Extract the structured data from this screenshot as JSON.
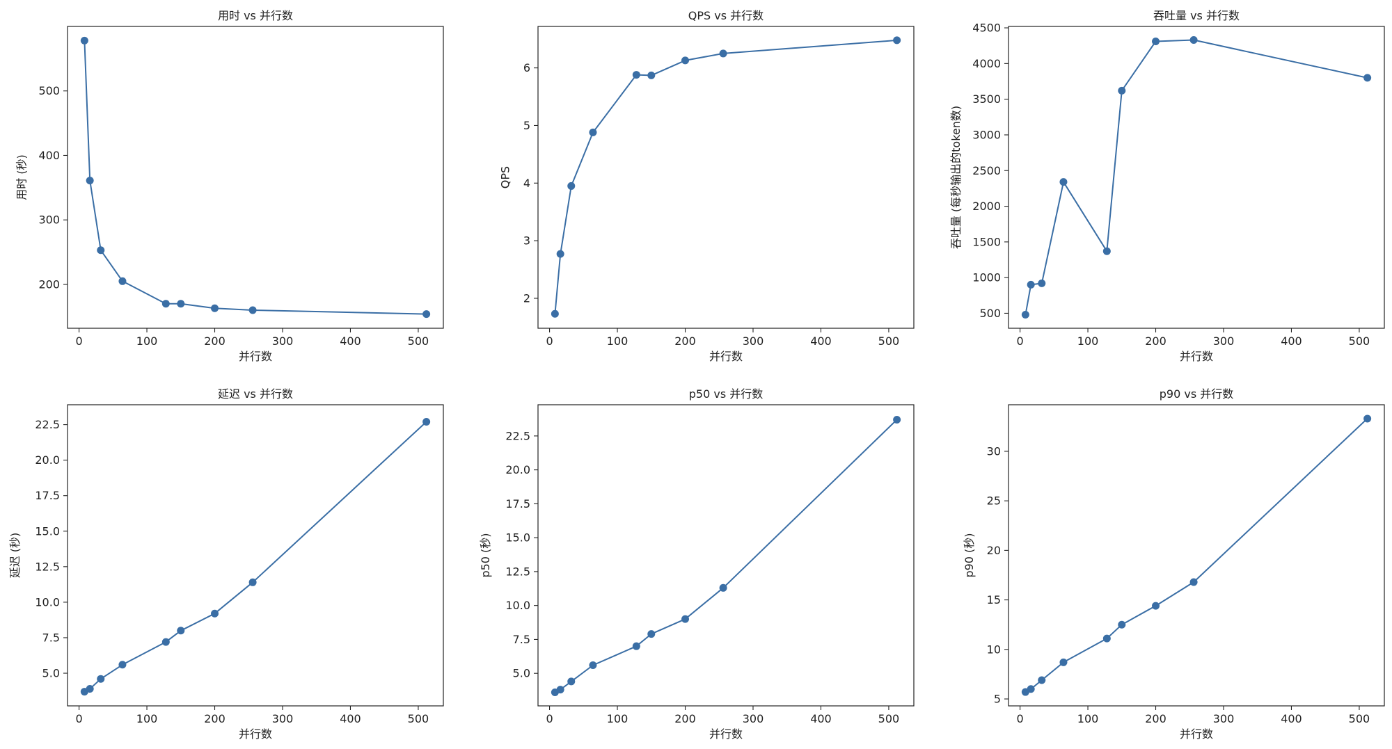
{
  "chart_data": [
    {
      "type": "line",
      "title": "用时 vs 并行数",
      "xlabel": "并行数",
      "ylabel": "用时 (秒)",
      "x": [
        8,
        16,
        32,
        64,
        128,
        150,
        200,
        256,
        512
      ],
      "series": [
        {
          "values": [
            578,
            361,
            253,
            205,
            170,
            170,
            163,
            160,
            154
          ]
        }
      ],
      "xlim": [
        -17,
        537
      ],
      "ylim": [
        132,
        600
      ],
      "xticks": [
        0,
        100,
        200,
        300,
        400,
        500
      ],
      "yticks": [
        200,
        300,
        400,
        500
      ],
      "ytick_labels": [
        "200",
        "300",
        "400",
        "500"
      ],
      "grid": false,
      "color": "#3a6ea5"
    },
    {
      "type": "line",
      "title": "QPS vs 并行数",
      "xlabel": "并行数",
      "ylabel": "QPS",
      "x": [
        8,
        16,
        32,
        64,
        128,
        150,
        200,
        256,
        512
      ],
      "series": [
        {
          "values": [
            1.73,
            2.77,
            3.95,
            4.88,
            5.88,
            5.87,
            6.13,
            6.25,
            6.48
          ]
        }
      ],
      "xlim": [
        -17,
        537
      ],
      "ylim": [
        1.48,
        6.72
      ],
      "xticks": [
        0,
        100,
        200,
        300,
        400,
        500
      ],
      "yticks": [
        2,
        3,
        4,
        5,
        6
      ],
      "ytick_labels": [
        "2",
        "3",
        "4",
        "5",
        "6"
      ],
      "grid": false,
      "color": "#3a6ea5"
    },
    {
      "type": "line",
      "title": "吞吐量 vs 并行数",
      "xlabel": "并行数",
      "ylabel": "吞吐量 (每秒输出的token数)",
      "x": [
        8,
        16,
        32,
        64,
        128,
        150,
        200,
        256,
        512
      ],
      "series": [
        {
          "values": [
            480,
            900,
            920,
            2340,
            1370,
            3620,
            4310,
            4330,
            3800
          ]
        }
      ],
      "xlim": [
        -17,
        537
      ],
      "ylim": [
        290,
        4520
      ],
      "xticks": [
        0,
        100,
        200,
        300,
        400,
        500
      ],
      "yticks": [
        500,
        1000,
        1500,
        2000,
        2500,
        3000,
        3500,
        4000,
        4500
      ],
      "ytick_labels": [
        "500",
        "1000",
        "1500",
        "2000",
        "2500",
        "3000",
        "3500",
        "4000",
        "4500"
      ],
      "grid": false,
      "color": "#3a6ea5"
    },
    {
      "type": "line",
      "title": "延迟 vs 并行数",
      "xlabel": "并行数",
      "ylabel": "延迟 (秒)",
      "x": [
        8,
        16,
        32,
        64,
        128,
        150,
        200,
        256,
        512
      ],
      "series": [
        {
          "values": [
            3.7,
            3.9,
            4.6,
            5.6,
            7.2,
            8.0,
            9.2,
            11.4,
            22.7
          ]
        }
      ],
      "xlim": [
        -17,
        537
      ],
      "ylim": [
        2.7,
        23.9
      ],
      "xticks": [
        0,
        100,
        200,
        300,
        400,
        500
      ],
      "yticks": [
        5.0,
        7.5,
        10.0,
        12.5,
        15.0,
        17.5,
        20.0,
        22.5
      ],
      "ytick_labels": [
        "5.0",
        "7.5",
        "10.0",
        "12.5",
        "15.0",
        "17.5",
        "20.0",
        "22.5"
      ],
      "grid": false,
      "color": "#3a6ea5"
    },
    {
      "type": "line",
      "title": "p50 vs 并行数",
      "xlabel": "并行数",
      "ylabel": "p50 (秒)",
      "x": [
        8,
        16,
        32,
        64,
        128,
        150,
        200,
        256,
        512
      ],
      "series": [
        {
          "values": [
            3.6,
            3.8,
            4.4,
            5.6,
            7.0,
            7.9,
            9.0,
            11.3,
            23.7
          ]
        }
      ],
      "xlim": [
        -17,
        537
      ],
      "ylim": [
        2.6,
        24.8
      ],
      "xticks": [
        0,
        100,
        200,
        300,
        400,
        500
      ],
      "yticks": [
        5.0,
        7.5,
        10.0,
        12.5,
        15.0,
        17.5,
        20.0,
        22.5
      ],
      "ytick_labels": [
        "5.0",
        "7.5",
        "10.0",
        "12.5",
        "15.0",
        "17.5",
        "20.0",
        "22.5"
      ],
      "grid": false,
      "color": "#3a6ea5"
    },
    {
      "type": "line",
      "title": "p90 vs 并行数",
      "xlabel": "并行数",
      "ylabel": "p90 (秒)",
      "x": [
        8,
        16,
        32,
        64,
        128,
        150,
        200,
        256,
        512
      ],
      "series": [
        {
          "values": [
            5.7,
            6.0,
            6.9,
            8.7,
            11.1,
            12.5,
            14.4,
            16.8,
            33.3
          ]
        }
      ],
      "xlim": [
        -17,
        537
      ],
      "ylim": [
        4.3,
        34.7
      ],
      "xticks": [
        0,
        100,
        200,
        300,
        400,
        500
      ],
      "yticks": [
        5,
        10,
        15,
        20,
        25,
        30
      ],
      "ytick_labels": [
        "5",
        "10",
        "15",
        "20",
        "25",
        "30"
      ],
      "grid": false,
      "color": "#3a6ea5"
    }
  ]
}
